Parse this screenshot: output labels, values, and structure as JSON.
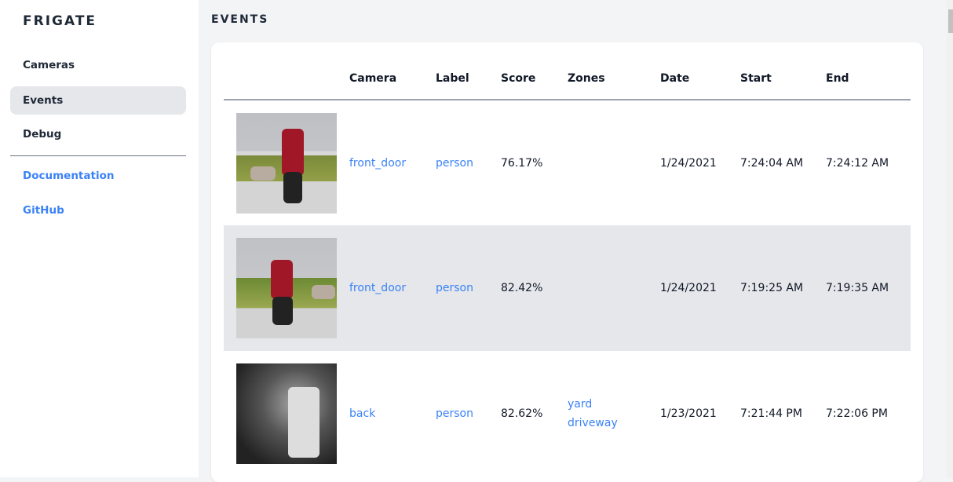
{
  "sidebar": {
    "brand": "FRIGATE",
    "items": [
      {
        "label": "Cameras"
      },
      {
        "label": "Events",
        "active": true
      },
      {
        "label": "Debug"
      }
    ],
    "links": [
      {
        "label": "Documentation"
      },
      {
        "label": "GitHub"
      }
    ]
  },
  "page": {
    "title": "EVENTS"
  },
  "table": {
    "headers": [
      "",
      "Camera",
      "Label",
      "Score",
      "Zones",
      "Date",
      "Start",
      "End"
    ],
    "rows": [
      {
        "camera": "front_door",
        "label": "person",
        "score": "76.17%",
        "zones": [
          "",
          ""
        ],
        "date": "1/24/2021",
        "start": "7:24:04 AM",
        "end": "7:24:12 AM"
      },
      {
        "camera": "front_door",
        "label": "person",
        "score": "82.42%",
        "zones": [
          "",
          ""
        ],
        "date": "1/24/2021",
        "start": "7:19:25 AM",
        "end": "7:19:35 AM"
      },
      {
        "camera": "back",
        "label": "person",
        "score": "82.62%",
        "zones": [
          "yard",
          "driveway"
        ],
        "date": "1/23/2021",
        "start": "7:21:44 PM",
        "end": "7:22:06 PM"
      }
    ]
  },
  "colors": {
    "accent": "#3b82f6",
    "active_bg": "#e5e7eb"
  }
}
